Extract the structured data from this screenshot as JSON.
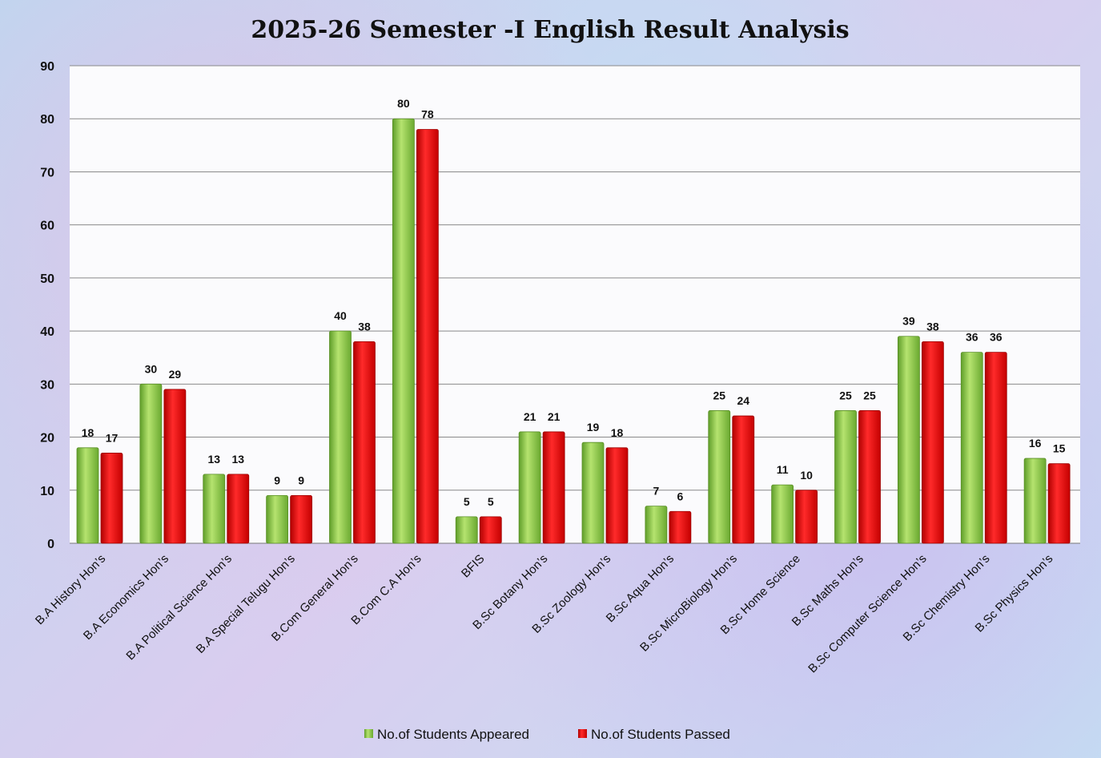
{
  "chart_data": {
    "type": "bar",
    "title": "2025-26 Semester -I English Result Analysis",
    "xlabel": "",
    "ylabel": "",
    "ylim": [
      0,
      90
    ],
    "yticks": [
      0,
      10,
      20,
      30,
      40,
      50,
      60,
      70,
      80,
      90
    ],
    "grid": true,
    "legend_position": "bottom",
    "categories": [
      "B.A History Hon’s",
      "B.A Economics Hon’s",
      "B.A Political Science Hon’s",
      "B.A Special Telugu Hon’s",
      "B.Com General Hon’s",
      "B.Com C.A Hon’s",
      "BFIS",
      "B.Sc Botany Hon’s",
      "B.Sc Zoology Hon’s",
      "B.Sc Aqua Hon’s",
      "B.Sc MicroBiology Hon’s",
      "B.Sc Home Science",
      "B.Sc Maths Hon’s",
      "B.Sc Computer Science Hon’s",
      "B.Sc Chemistry Hon’s",
      "B.Sc Physics Hon’s"
    ],
    "series": [
      {
        "name": "No.of Students Appeared",
        "color": "#7cc43a",
        "values": [
          18,
          30,
          13,
          9,
          40,
          80,
          5,
          21,
          19,
          7,
          25,
          11,
          25,
          39,
          36,
          16
        ]
      },
      {
        "name": "No.of Students Passed",
        "color": "#e8191a",
        "values": [
          17,
          29,
          13,
          9,
          38,
          78,
          5,
          21,
          18,
          6,
          24,
          10,
          25,
          38,
          36,
          15
        ]
      }
    ]
  }
}
